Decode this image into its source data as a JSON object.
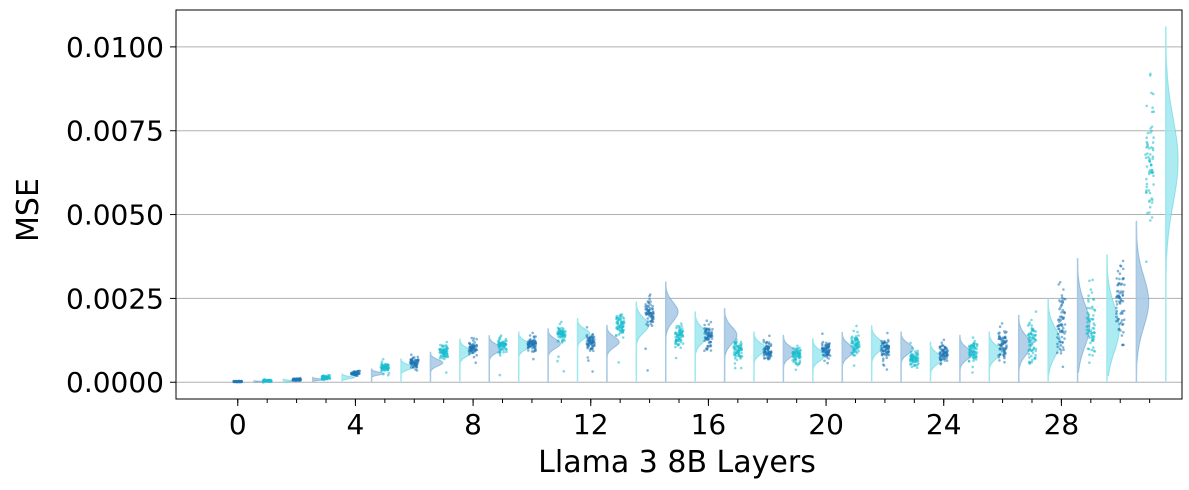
{
  "chart_data": {
    "type": "violin",
    "xlabel": "Llama 3 8B Layers",
    "ylabel": "MSE",
    "ylim": [
      -0.0005,
      0.0111
    ],
    "xlim": [
      -2.1,
      32.1
    ],
    "yticks": [
      0.0,
      0.0025,
      0.005,
      0.0075,
      0.01
    ],
    "ytick_labels": [
      "0.0000",
      "0.0025",
      "0.0050",
      "0.0075",
      "0.0100"
    ],
    "xticks": [
      0,
      4,
      8,
      12,
      16,
      20,
      24,
      28
    ],
    "xtick_labels": [
      "0",
      "4",
      "8",
      "12",
      "16",
      "20",
      "24",
      "28"
    ],
    "grid": "horizontal",
    "colors": {
      "even_layers": "#1f77b4",
      "odd_layers": "#17becf",
      "even_violin_fill": "#a6c8e4",
      "odd_violin_fill": "#9ee8ef",
      "grid": "#b0b0b0"
    },
    "series": [
      {
        "layer": 0,
        "median": 2e-05,
        "min": 0.0,
        "max": 5e-05
      },
      {
        "layer": 1,
        "median": 4e-05,
        "min": 0.0,
        "max": 0.0001
      },
      {
        "layer": 2,
        "median": 8e-05,
        "min": 3e-05,
        "max": 0.00015
      },
      {
        "layer": 3,
        "median": 0.00014,
        "min": 6e-05,
        "max": 0.00025
      },
      {
        "layer": 4,
        "median": 0.00026,
        "min": 0.00012,
        "max": 0.0004
      },
      {
        "layer": 5,
        "median": 0.00045,
        "min": 0.00015,
        "max": 0.0007
      },
      {
        "layer": 6,
        "median": 0.00058,
        "min": 0.00018,
        "max": 0.0009
      },
      {
        "layer": 7,
        "median": 0.0009,
        "min": 0.0002,
        "max": 0.0013
      },
      {
        "layer": 8,
        "median": 0.001,
        "min": 0.0002,
        "max": 0.0014
      },
      {
        "layer": 9,
        "median": 0.0011,
        "min": 0.0002,
        "max": 0.0015
      },
      {
        "layer": 10,
        "median": 0.00115,
        "min": 0.0002,
        "max": 0.0016
      },
      {
        "layer": 11,
        "median": 0.00145,
        "min": 0.0003,
        "max": 0.0019
      },
      {
        "layer": 12,
        "median": 0.0012,
        "min": 0.0002,
        "max": 0.0017
      },
      {
        "layer": 13,
        "median": 0.0017,
        "min": 0.0003,
        "max": 0.0024
      },
      {
        "layer": 14,
        "median": 0.0021,
        "min": 0.0003,
        "max": 0.003
      },
      {
        "layer": 15,
        "median": 0.0014,
        "min": 0.0002,
        "max": 0.0021
      },
      {
        "layer": 16,
        "median": 0.0014,
        "min": 0.0002,
        "max": 0.0022
      },
      {
        "layer": 17,
        "median": 0.001,
        "min": 0.0002,
        "max": 0.0015
      },
      {
        "layer": 18,
        "median": 0.0009,
        "min": 0.0002,
        "max": 0.0014
      },
      {
        "layer": 19,
        "median": 0.0008,
        "min": 0.0002,
        "max": 0.0013
      },
      {
        "layer": 20,
        "median": 0.00095,
        "min": 0.0002,
        "max": 0.0015
      },
      {
        "layer": 21,
        "median": 0.0011,
        "min": 0.0002,
        "max": 0.0017
      },
      {
        "layer": 22,
        "median": 0.001,
        "min": 0.0002,
        "max": 0.0015
      },
      {
        "layer": 23,
        "median": 0.0007,
        "min": 0.0002,
        "max": 0.0012
      },
      {
        "layer": 24,
        "median": 0.00085,
        "min": 0.0002,
        "max": 0.0014
      },
      {
        "layer": 25,
        "median": 0.0009,
        "min": 0.0002,
        "max": 0.0015
      },
      {
        "layer": 26,
        "median": 0.0011,
        "min": 0.0002,
        "max": 0.002
      },
      {
        "layer": 27,
        "median": 0.0012,
        "min": 0.0002,
        "max": 0.0025
      },
      {
        "layer": 28,
        "median": 0.0017,
        "min": 0.0003,
        "max": 0.0037
      },
      {
        "layer": 29,
        "median": 0.0016,
        "min": 0.0002,
        "max": 0.0038
      },
      {
        "layer": 30,
        "median": 0.0024,
        "min": 0.0003,
        "max": 0.0048
      },
      {
        "layer": 31,
        "median": 0.0066,
        "min": 0.0015,
        "max": 0.0106
      }
    ]
  }
}
